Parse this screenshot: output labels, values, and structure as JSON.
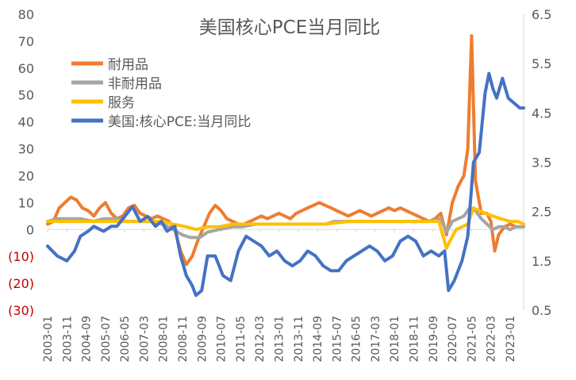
{
  "chart_data": {
    "type": "line",
    "title": "美国核心PCE当月同比",
    "x_tick_labels": [
      "2003-01",
      "2003-11",
      "2004-09",
      "2005-07",
      "2006-05",
      "2007-03",
      "2008-01",
      "2008-11",
      "2009-09",
      "2010-07",
      "2011-05",
      "2012-03",
      "2013-01",
      "2013-11",
      "2014-09",
      "2015-07",
      "2016-05",
      "2017-03",
      "2018-01",
      "2018-11",
      "2019-09",
      "2020-07",
      "2021-05",
      "2022-03",
      "2023-01"
    ],
    "x_range": [
      "2003-01",
      "2023-08"
    ],
    "y_left": {
      "ylim": [
        -30,
        80
      ],
      "ticks": [
        80,
        70,
        60,
        50,
        40,
        30,
        20,
        10,
        0,
        -10,
        -20,
        -30
      ],
      "tick_labels": [
        "80",
        "70",
        "60",
        "50",
        "40",
        "30",
        "20",
        "10",
        "0",
        "(10)",
        "(20)",
        "(30)"
      ],
      "tick_colors": [
        "#595959",
        "#595959",
        "#595959",
        "#595959",
        "#595959",
        "#595959",
        "#595959",
        "#595959",
        "#595959",
        "#c00000",
        "#c00000",
        "#c00000"
      ]
    },
    "y_right": {
      "ylim": [
        0.5,
        6.5
      ],
      "ticks": [
        6.5,
        5.5,
        4.5,
        3.5,
        2.5,
        1.5,
        0.5
      ],
      "tick_labels": [
        "6.5",
        "5.5",
        "4.5",
        "3.5",
        "2.5",
        "1.5",
        "0.5"
      ]
    },
    "legend_position": "top-left",
    "grid": false,
    "series": [
      {
        "name": "耐用品",
        "color": "#ed7d31",
        "axis": "left",
        "points": [
          [
            "2003-01",
            2
          ],
          [
            "2003-04",
            3
          ],
          [
            "2003-07",
            8
          ],
          [
            "2003-10",
            10
          ],
          [
            "2004-01",
            12
          ],
          [
            "2004-04",
            11
          ],
          [
            "2004-07",
            8
          ],
          [
            "2004-10",
            7
          ],
          [
            "2005-01",
            5
          ],
          [
            "2005-04",
            8
          ],
          [
            "2005-07",
            10
          ],
          [
            "2005-10",
            6
          ],
          [
            "2006-01",
            4
          ],
          [
            "2006-04",
            5
          ],
          [
            "2006-07",
            8
          ],
          [
            "2006-10",
            9
          ],
          [
            "2007-01",
            6
          ],
          [
            "2007-04",
            5
          ],
          [
            "2007-07",
            4
          ],
          [
            "2007-10",
            5
          ],
          [
            "2008-01",
            4
          ],
          [
            "2008-04",
            3
          ],
          [
            "2008-07",
            0
          ],
          [
            "2008-10",
            -8
          ],
          [
            "2009-01",
            -13
          ],
          [
            "2009-04",
            -10
          ],
          [
            "2009-07",
            -4
          ],
          [
            "2009-10",
            1
          ],
          [
            "2010-01",
            6
          ],
          [
            "2010-04",
            9
          ],
          [
            "2010-07",
            7
          ],
          [
            "2010-10",
            4
          ],
          [
            "2011-01",
            3
          ],
          [
            "2011-04",
            2
          ],
          [
            "2011-07",
            2
          ],
          [
            "2011-10",
            3
          ],
          [
            "2012-01",
            4
          ],
          [
            "2012-04",
            5
          ],
          [
            "2012-07",
            4
          ],
          [
            "2012-10",
            5
          ],
          [
            "2013-01",
            6
          ],
          [
            "2013-04",
            5
          ],
          [
            "2013-07",
            4
          ],
          [
            "2013-10",
            6
          ],
          [
            "2014-01",
            7
          ],
          [
            "2014-04",
            8
          ],
          [
            "2014-07",
            9
          ],
          [
            "2014-10",
            10
          ],
          [
            "2015-01",
            9
          ],
          [
            "2015-04",
            8
          ],
          [
            "2015-07",
            7
          ],
          [
            "2015-10",
            6
          ],
          [
            "2016-01",
            5
          ],
          [
            "2016-04",
            6
          ],
          [
            "2016-07",
            7
          ],
          [
            "2016-10",
            6
          ],
          [
            "2017-01",
            5
          ],
          [
            "2017-04",
            6
          ],
          [
            "2017-07",
            7
          ],
          [
            "2017-10",
            8
          ],
          [
            "2018-01",
            7
          ],
          [
            "2018-04",
            8
          ],
          [
            "2018-07",
            7
          ],
          [
            "2018-10",
            6
          ],
          [
            "2019-01",
            5
          ],
          [
            "2019-04",
            4
          ],
          [
            "2019-07",
            3
          ],
          [
            "2019-10",
            4
          ],
          [
            "2020-01",
            6
          ],
          [
            "2020-04",
            -2
          ],
          [
            "2020-07",
            10
          ],
          [
            "2020-10",
            16
          ],
          [
            "2021-01",
            20
          ],
          [
            "2021-03",
            30
          ],
          [
            "2021-05",
            72
          ],
          [
            "2021-07",
            18
          ],
          [
            "2021-10",
            6
          ],
          [
            "2022-01",
            6
          ],
          [
            "2022-03",
            3
          ],
          [
            "2022-05",
            -8
          ],
          [
            "2022-07",
            -2
          ],
          [
            "2022-10",
            1
          ],
          [
            "2023-01",
            2
          ],
          [
            "2023-04",
            1
          ],
          [
            "2023-08",
            1
          ]
        ]
      },
      {
        "name": "非耐用品",
        "color": "#a5a5a5",
        "axis": "left",
        "points": [
          [
            "2003-01",
            3
          ],
          [
            "2003-06",
            4
          ],
          [
            "2004-01",
            4
          ],
          [
            "2004-06",
            4
          ],
          [
            "2005-01",
            3
          ],
          [
            "2005-06",
            4
          ],
          [
            "2006-01",
            4
          ],
          [
            "2006-06",
            3
          ],
          [
            "2007-01",
            3
          ],
          [
            "2007-06",
            3
          ],
          [
            "2008-01",
            2
          ],
          [
            "2008-06",
            0
          ],
          [
            "2008-11",
            -2
          ],
          [
            "2009-03",
            -3
          ],
          [
            "2009-08",
            -3
          ],
          [
            "2009-12",
            -1
          ],
          [
            "2010-06",
            0
          ],
          [
            "2011-01",
            1
          ],
          [
            "2011-06",
            1
          ],
          [
            "2012-01",
            2
          ],
          [
            "2012-06",
            2
          ],
          [
            "2013-01",
            2
          ],
          [
            "2013-06",
            2
          ],
          [
            "2014-01",
            2
          ],
          [
            "2014-06",
            2
          ],
          [
            "2015-01",
            2
          ],
          [
            "2015-06",
            3
          ],
          [
            "2016-01",
            3
          ],
          [
            "2016-06",
            3
          ],
          [
            "2017-01",
            3
          ],
          [
            "2017-06",
            3
          ],
          [
            "2018-01",
            3
          ],
          [
            "2018-06",
            3
          ],
          [
            "2019-01",
            3
          ],
          [
            "2019-06",
            3
          ],
          [
            "2020-01",
            4
          ],
          [
            "2020-04",
            -1
          ],
          [
            "2020-07",
            3
          ],
          [
            "2020-10",
            4
          ],
          [
            "2021-01",
            5
          ],
          [
            "2021-04",
            8
          ],
          [
            "2021-07",
            7
          ],
          [
            "2021-10",
            4
          ],
          [
            "2022-01",
            2
          ],
          [
            "2022-04",
            0
          ],
          [
            "2022-07",
            1
          ],
          [
            "2022-10",
            1
          ],
          [
            "2023-01",
            0
          ],
          [
            "2023-04",
            1
          ],
          [
            "2023-08",
            1
          ]
        ]
      },
      {
        "name": "服务",
        "color": "#ffc000",
        "axis": "left",
        "points": [
          [
            "2003-01",
            3
          ],
          [
            "2004-01",
            3
          ],
          [
            "2005-01",
            3
          ],
          [
            "2006-01",
            3
          ],
          [
            "2007-01",
            3
          ],
          [
            "2008-01",
            3
          ],
          [
            "2008-06",
            2
          ],
          [
            "2009-01",
            1
          ],
          [
            "2009-06",
            0
          ],
          [
            "2009-12",
            1
          ],
          [
            "2010-06",
            1
          ],
          [
            "2011-01",
            2
          ],
          [
            "2011-06",
            2
          ],
          [
            "2012-01",
            2
          ],
          [
            "2013-01",
            2
          ],
          [
            "2014-01",
            2
          ],
          [
            "2015-01",
            2
          ],
          [
            "2016-01",
            3
          ],
          [
            "2017-01",
            3
          ],
          [
            "2018-01",
            3
          ],
          [
            "2019-01",
            3
          ],
          [
            "2019-12",
            3
          ],
          [
            "2020-04",
            -7
          ],
          [
            "2020-06",
            -4
          ],
          [
            "2020-09",
            0
          ],
          [
            "2020-12",
            1
          ],
          [
            "2021-03",
            2
          ],
          [
            "2021-06",
            8
          ],
          [
            "2021-09",
            7
          ],
          [
            "2021-12",
            6
          ],
          [
            "2022-04",
            5
          ],
          [
            "2022-08",
            4
          ],
          [
            "2023-01",
            3
          ],
          [
            "2023-05",
            3
          ],
          [
            "2023-08",
            2
          ]
        ]
      },
      {
        "name": "美国:核心PCE:当月同比",
        "color": "#4472c4",
        "axis": "right",
        "points": [
          [
            "2003-01",
            1.8
          ],
          [
            "2003-06",
            1.6
          ],
          [
            "2003-11",
            1.5
          ],
          [
            "2004-03",
            1.7
          ],
          [
            "2004-06",
            2.0
          ],
          [
            "2004-10",
            2.1
          ],
          [
            "2005-01",
            2.2
          ],
          [
            "2005-06",
            2.1
          ],
          [
            "2005-10",
            2.2
          ],
          [
            "2006-01",
            2.2
          ],
          [
            "2006-05",
            2.4
          ],
          [
            "2006-09",
            2.6
          ],
          [
            "2007-01",
            2.3
          ],
          [
            "2007-05",
            2.4
          ],
          [
            "2007-09",
            2.2
          ],
          [
            "2007-12",
            2.3
          ],
          [
            "2008-03",
            2.1
          ],
          [
            "2008-07",
            2.2
          ],
          [
            "2008-10",
            1.6
          ],
          [
            "2009-01",
            1.2
          ],
          [
            "2009-04",
            1.0
          ],
          [
            "2009-06",
            0.8
          ],
          [
            "2009-09",
            0.9
          ],
          [
            "2009-12",
            1.6
          ],
          [
            "2010-04",
            1.6
          ],
          [
            "2010-08",
            1.2
          ],
          [
            "2010-12",
            1.1
          ],
          [
            "2011-04",
            1.7
          ],
          [
            "2011-08",
            2.0
          ],
          [
            "2011-12",
            1.9
          ],
          [
            "2012-04",
            1.8
          ],
          [
            "2012-08",
            1.6
          ],
          [
            "2012-12",
            1.7
          ],
          [
            "2013-04",
            1.5
          ],
          [
            "2013-08",
            1.4
          ],
          [
            "2013-12",
            1.5
          ],
          [
            "2014-04",
            1.7
          ],
          [
            "2014-08",
            1.6
          ],
          [
            "2014-12",
            1.4
          ],
          [
            "2015-04",
            1.3
          ],
          [
            "2015-08",
            1.3
          ],
          [
            "2015-12",
            1.5
          ],
          [
            "2016-04",
            1.6
          ],
          [
            "2016-08",
            1.7
          ],
          [
            "2016-12",
            1.8
          ],
          [
            "2017-04",
            1.7
          ],
          [
            "2017-08",
            1.5
          ],
          [
            "2017-12",
            1.6
          ],
          [
            "2018-04",
            1.9
          ],
          [
            "2018-08",
            2.0
          ],
          [
            "2018-12",
            1.9
          ],
          [
            "2019-04",
            1.6
          ],
          [
            "2019-08",
            1.7
          ],
          [
            "2019-12",
            1.6
          ],
          [
            "2020-03",
            1.7
          ],
          [
            "2020-05",
            0.9
          ],
          [
            "2020-08",
            1.1
          ],
          [
            "2020-12",
            1.5
          ],
          [
            "2021-03",
            2.0
          ],
          [
            "2021-06",
            3.5
          ],
          [
            "2021-09",
            3.7
          ],
          [
            "2021-12",
            4.9
          ],
          [
            "2022-02",
            5.3
          ],
          [
            "2022-04",
            5.0
          ],
          [
            "2022-06",
            4.8
          ],
          [
            "2022-09",
            5.2
          ],
          [
            "2022-12",
            4.8
          ],
          [
            "2023-03",
            4.7
          ],
          [
            "2023-06",
            4.6
          ],
          [
            "2023-08",
            4.6
          ]
        ]
      }
    ]
  }
}
